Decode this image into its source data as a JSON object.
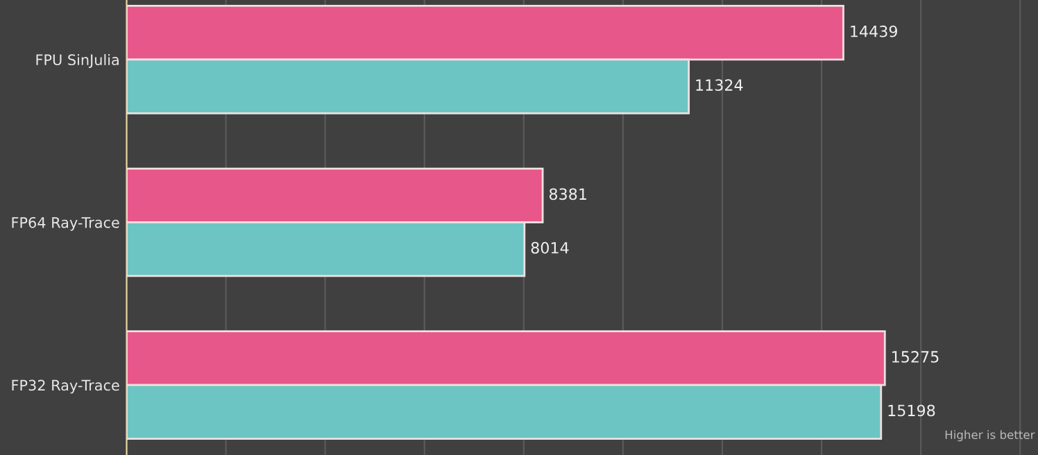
{
  "chart_data": {
    "type": "bar",
    "orientation": "horizontal",
    "categories": [
      "FPU SinJulia",
      "FP64 Ray-Trace",
      "FP32 Ray-Trace"
    ],
    "series": [
      {
        "color": "#e8578a",
        "values": [
          14439,
          8381,
          15275
        ]
      },
      {
        "color": "#6cc5c2",
        "values": [
          11324,
          8014,
          15198
        ]
      }
    ],
    "data_labels": true,
    "xlim": [
      0,
      18360
    ],
    "xticks": [
      {
        "value": 2000,
        "label": null
      },
      {
        "value": 4000,
        "label": null
      },
      {
        "value": 6000,
        "label": null
      },
      {
        "value": 8000,
        "label": null
      },
      {
        "value": 10000,
        "label": null
      },
      {
        "value": 12000,
        "label": null
      },
      {
        "value": 14000,
        "label": null
      },
      {
        "value": 16000,
        "label": null
      },
      {
        "value": 18000,
        "label": null
      }
    ],
    "tick_labels": "y",
    "grid": "x",
    "annotations": [
      "Higher is better"
    ]
  }
}
